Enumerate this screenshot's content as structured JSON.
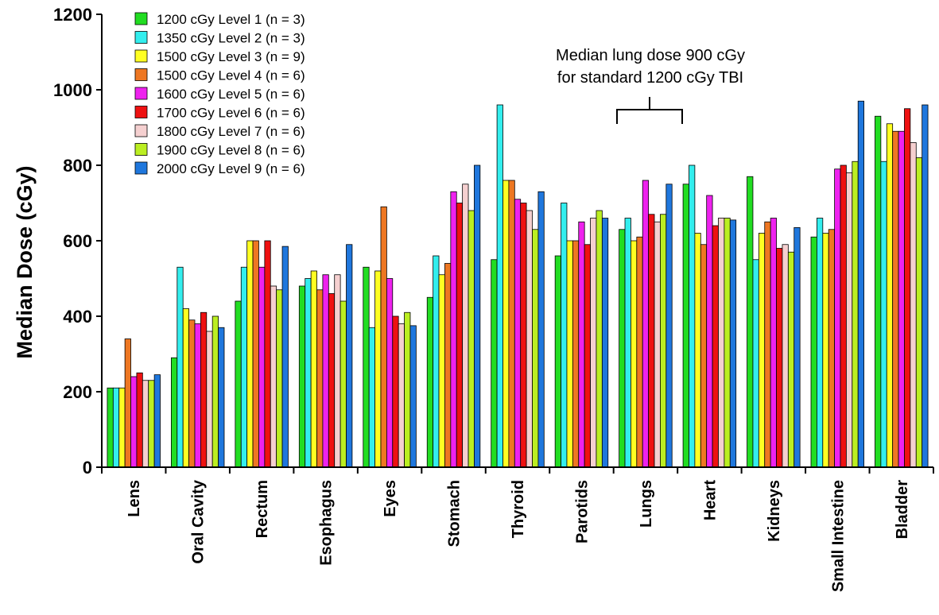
{
  "chart_data": {
    "type": "bar",
    "title": "",
    "xlabel": "",
    "ylabel": "Median Dose (cGy)",
    "ylim": [
      0,
      1200
    ],
    "yticks": [
      0,
      200,
      400,
      600,
      800,
      1000,
      1200
    ],
    "grid": false,
    "legend_position": "top-left",
    "categories": [
      "Lens",
      "Oral Cavity",
      "Rectum",
      "Esophagus",
      "Eyes",
      "Stomach",
      "Thyroid",
      "Parotids",
      "Lungs",
      "Heart",
      "Kidneys",
      "Small Intestine",
      "Bladder"
    ],
    "series": [
      {
        "name": "1200 cGy Level 1 (n = 3)",
        "color": "#22dd22",
        "values": [
          210,
          290,
          440,
          480,
          530,
          450,
          550,
          560,
          630,
          750,
          770,
          610,
          930
        ]
      },
      {
        "name": "1350 cGy Level 2 (n = 3)",
        "color": "#33eeee",
        "values": [
          210,
          530,
          530,
          500,
          370,
          560,
          960,
          700,
          660,
          800,
          550,
          660,
          810
        ]
      },
      {
        "name": "1500 cGy Level 3 (n = 9)",
        "color": "#ffff22",
        "values": [
          210,
          420,
          600,
          520,
          520,
          510,
          760,
          600,
          600,
          620,
          620,
          620,
          910
        ]
      },
      {
        "name": "1500 cGy Level 4 (n = 6)",
        "color": "#ee7722",
        "values": [
          340,
          390,
          600,
          470,
          690,
          540,
          760,
          600,
          610,
          590,
          650,
          630,
          890
        ]
      },
      {
        "name": "1600 cGy Level 5 (n = 6)",
        "color": "#ee22ee",
        "values": [
          240,
          380,
          530,
          510,
          500,
          730,
          710,
          650,
          760,
          720,
          660,
          790,
          890
        ]
      },
      {
        "name": "1700 cGy Level 6 (n = 6)",
        "color": "#ee1111",
        "values": [
          250,
          410,
          600,
          460,
          400,
          700,
          700,
          590,
          670,
          640,
          580,
          800,
          950
        ]
      },
      {
        "name": "1800 cGy Level 7 (n = 6)",
        "color": "#f5d0d0",
        "values": [
          230,
          360,
          480,
          510,
          380,
          750,
          680,
          660,
          650,
          660,
          590,
          780,
          860
        ]
      },
      {
        "name": "1900 cGy Level 8 (n = 6)",
        "color": "#bbee22",
        "values": [
          230,
          400,
          470,
          440,
          410,
          680,
          630,
          680,
          670,
          660,
          570,
          810,
          820
        ]
      },
      {
        "name": "2000 cGy Level 9 (n = 6)",
        "color": "#1f77dd",
        "values": [
          245,
          370,
          585,
          590,
          375,
          800,
          730,
          660,
          750,
          655,
          635,
          970,
          960
        ]
      }
    ],
    "annotations": [
      {
        "text_line1": "Median lung dose 900 cGy",
        "text_line2": "for standard 1200 cGy TBI",
        "category": "Lungs",
        "value": 900
      }
    ]
  }
}
